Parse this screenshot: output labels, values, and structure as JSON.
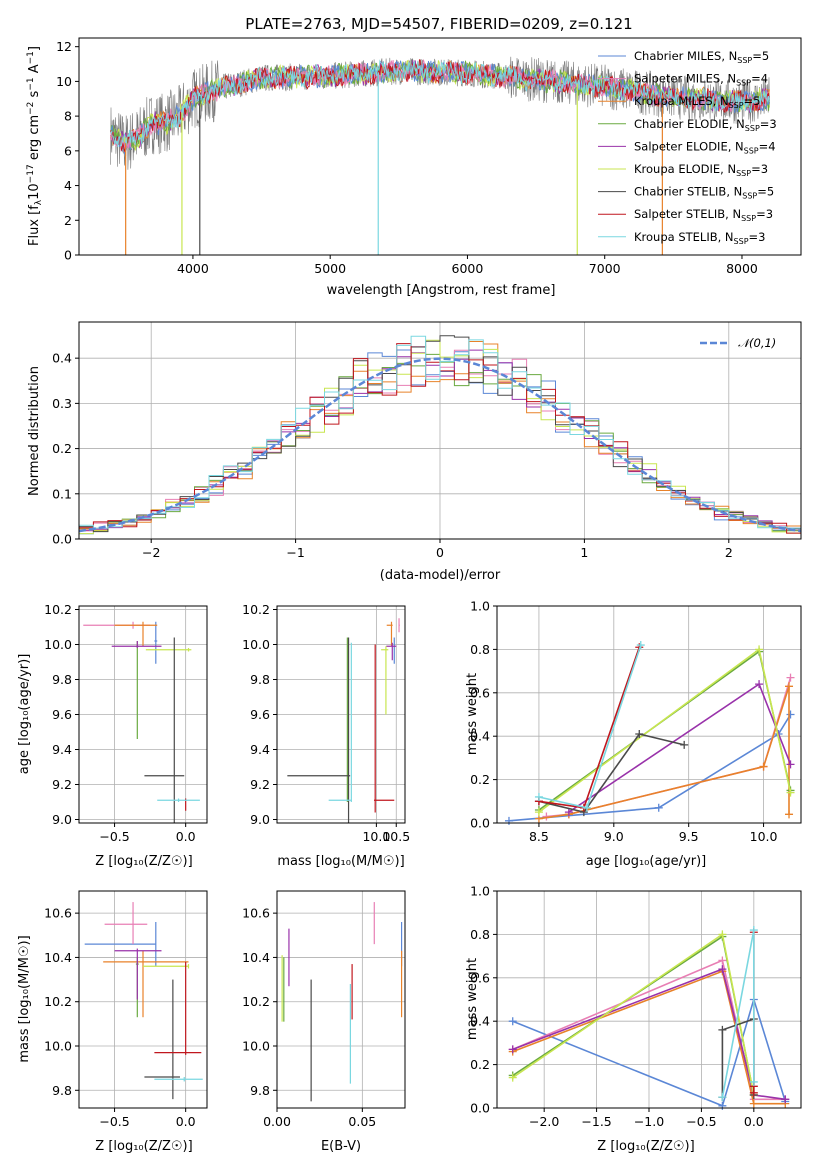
{
  "figure": {
    "title": "PLATE=2763, MJD=54507, FIBERID=0209, z=0.121"
  },
  "colors": {
    "Chabrier MILES": "#5b87d6",
    "Salpeter MILES": "#e87fb4",
    "Kroupa MILES": "#e8822a",
    "Chabrier ELODIE": "#6aaa40",
    "Salpeter ELODIE": "#9932aa",
    "Kroupa ELODIE": "#c8e650",
    "Chabrier STELIB": "#4a4a4a",
    "Salpeter STELIB": "#c0171e",
    "Kroupa STELIB": "#7ad7e0"
  },
  "chart_data": [
    {
      "type": "line",
      "panel": "spectrum",
      "title": "PLATE=2763, MJD=54507, FIBERID=0209, z=0.121",
      "xlabel": "wavelength [Angstrom, rest frame]",
      "ylabel": "Flux [f_λ 10^-17 erg cm^-2 s^-1 A^-1]",
      "xlim": [
        3170,
        8430
      ],
      "ylim": [
        0,
        12.5
      ],
      "xticks": [
        "4000",
        "5000",
        "6000",
        "7000",
        "8000"
      ],
      "yticks": [
        "0",
        "2",
        "4",
        "6",
        "8",
        "10",
        "12"
      ],
      "legend_position": "top-right",
      "legend": [
        "Chabrier MILES, N_SSP=5",
        "Salpeter MILES, N_SSP=4",
        "Kroupa MILES, N_SSP=5",
        "Chabrier ELODIE, N_SSP=3",
        "Salpeter ELODIE, N_SSP=4",
        "Kroupa ELODIE, N_SSP=3",
        "Chabrier STELIB, N_SSP=5",
        "Salpeter STELIB, N_SSP=3",
        "Kroupa STELIB, N_SSP=3"
      ],
      "legend_main": [
        "Chabrier MILES, N",
        "Salpeter MILES, N",
        "Kroupa MILES, N",
        "Chabrier ELODIE, N",
        "Salpeter ELODIE, N",
        "Kroupa ELODIE, N",
        "Chabrier STELIB, N",
        "Salpeter STELIB, N",
        "Kroupa STELIB, N"
      ],
      "legend_sub": "SSP",
      "legend_val": [
        "=5",
        "=4",
        "=5",
        "=3",
        "=4",
        "=3",
        "=5",
        "=3",
        "=3"
      ],
      "continuum": [
        [
          3400,
          7.0
        ],
        [
          3500,
          6.4
        ],
        [
          3600,
          6.8
        ],
        [
          3700,
          7.6
        ],
        [
          3800,
          7.6
        ],
        [
          3900,
          8.0
        ],
        [
          4000,
          9.0
        ],
        [
          4200,
          9.6
        ],
        [
          4500,
          10.2
        ],
        [
          5000,
          10.3
        ],
        [
          5500,
          10.6
        ],
        [
          6000,
          10.5
        ],
        [
          6500,
          10.1
        ],
        [
          7000,
          9.7
        ],
        [
          7500,
          9.1
        ],
        [
          8000,
          8.8
        ],
        [
          8200,
          9.0
        ]
      ],
      "drop_lines": [
        {
          "x": 3510,
          "series": "Kroupa MILES"
        },
        {
          "x": 3920,
          "series": "Kroupa ELODIE"
        },
        {
          "x": 4050,
          "series": "Chabrier STELIB"
        },
        {
          "x": 5350,
          "series": "Kroupa STELIB"
        },
        {
          "x": 6800,
          "series": "Kroupa ELODIE"
        },
        {
          "x": 7420,
          "series": "Kroupa MILES"
        }
      ]
    },
    {
      "type": "histogram",
      "panel": "residuals",
      "xlabel": "(data-model)/error",
      "ylabel": "Normed distribution",
      "xlim": [
        -2.5,
        2.5
      ],
      "ylim": [
        0,
        0.48
      ],
      "xticks": [
        "−2",
        "−1",
        "0",
        "1",
        "2"
      ],
      "yticks": [
        "0.0",
        "0.1",
        "0.2",
        "0.3",
        "0.4"
      ],
      "bin_width": 0.1,
      "legend": [
        "𝒩(0,1)"
      ],
      "legend_position": "top-right",
      "gaussian": {
        "mean": 0,
        "sigma": 1
      }
    },
    {
      "type": "scatter",
      "panel": "age-vs-metallicity",
      "xlabel": "Z [log₁₀(Z/Z☉)]",
      "ylabel": "age  [log₁₀(age/yr)]",
      "xlim": [
        -0.75,
        0.15
      ],
      "ylim": [
        8.98,
        10.22
      ],
      "xticks": [
        "−0.5",
        "0.0"
      ],
      "yticks": [
        "9.0",
        "9.2",
        "9.4",
        "9.6",
        "9.8",
        "10.0",
        "10.2"
      ],
      "points": [
        {
          "series": "Chabrier MILES",
          "x": -0.21,
          "y": 10.02,
          "xerr": [
            0.01,
            0.01
          ],
          "yerr": [
            0.13,
            0.11
          ]
        },
        {
          "series": "Salpeter MILES",
          "x": -0.37,
          "y": 10.11,
          "xerr": [
            0.35,
            0.12
          ],
          "yerr": [
            0.02,
            0.02
          ]
        },
        {
          "series": "Kroupa MILES",
          "x": -0.3,
          "y": 10.11,
          "xerr": [
            0.2,
            0.1
          ],
          "yerr": [
            0.12,
            0.02
          ]
        },
        {
          "series": "Chabrier ELODIE",
          "x": -0.34,
          "y": 9.99,
          "xerr": [
            0.01,
            0.01
          ],
          "yerr": [
            0.53,
            0.03
          ]
        },
        {
          "series": "Salpeter ELODIE",
          "x": -0.34,
          "y": 9.99,
          "xerr": [
            0.18,
            0.17
          ],
          "yerr": [
            0.01,
            0.03
          ]
        },
        {
          "series": "Kroupa ELODIE",
          "x": 0.02,
          "y": 9.97,
          "xerr": [
            0.3,
            0.02
          ],
          "yerr": [
            0.01,
            0.01
          ]
        },
        {
          "series": "Chabrier STELIB",
          "x": -0.08,
          "y": 9.25,
          "xerr": [
            0.21,
            0.07
          ],
          "yerr": [
            0.5,
            0.79
          ]
        },
        {
          "series": "Salpeter STELIB",
          "x": 0.0,
          "y": 9.12,
          "xerr": [
            0.0,
            0.0
          ],
          "yerr": [
            0.07,
            0.0
          ]
        },
        {
          "series": "Kroupa STELIB",
          "x": -0.05,
          "y": 9.11,
          "xerr": [
            0.15,
            0.15
          ],
          "yerr": [
            0.01,
            0.01
          ]
        }
      ]
    },
    {
      "type": "scatter",
      "panel": "age-vs-mass",
      "xlabel": "mass [log₁₀(M/M☉)]",
      "ylabel": "",
      "xlim": [
        7.5,
        10.72
      ],
      "ylim": [
        8.98,
        10.22
      ],
      "xticks": [
        "10.0",
        "10.5"
      ],
      "yticks": [
        "9.0",
        "9.2",
        "9.4",
        "9.6",
        "9.8",
        "10.0",
        "10.2"
      ],
      "points": [
        {
          "series": "Chabrier MILES",
          "x": 10.45,
          "y": 10.02,
          "xerr": [
            0.01,
            0.01
          ],
          "yerr": [
            0.13,
            0.02
          ]
        },
        {
          "series": "Salpeter MILES",
          "x": 10.57,
          "y": 10.11,
          "xerr": [
            0.01,
            0.02
          ],
          "yerr": [
            0.04,
            0.04
          ]
        },
        {
          "series": "Kroupa MILES",
          "x": 10.38,
          "y": 10.11,
          "xerr": [
            0.12,
            0.03
          ],
          "yerr": [
            0.12,
            0.02
          ]
        },
        {
          "series": "Chabrier ELODIE",
          "x": 9.27,
          "y": 9.99,
          "xerr": [
            0.01,
            0.01
          ],
          "yerr": [
            0.89,
            0.05
          ]
        },
        {
          "series": "Salpeter ELODIE",
          "x": 10.4,
          "y": 9.99,
          "xerr": [
            0.15,
            0.1
          ],
          "yerr": [
            0.08,
            0.02
          ]
        },
        {
          "series": "Kroupa ELODIE",
          "x": 10.24,
          "y": 9.97,
          "xerr": [
            0.12,
            0.06
          ],
          "yerr": [
            0.37,
            0.02
          ]
        },
        {
          "series": "Chabrier STELIB",
          "x": 9.3,
          "y": 9.25,
          "xerr": [
            1.54,
            0.04
          ],
          "yerr": [
            0.27,
            0.79
          ]
        },
        {
          "series": "Salpeter STELIB",
          "x": 9.97,
          "y": 9.11,
          "xerr": [
            0.03,
            0.48
          ],
          "yerr": [
            0.07,
            0.89
          ]
        },
        {
          "series": "Kroupa STELIB",
          "x": 9.37,
          "y": 9.11,
          "xerr": [
            0.57,
            0.01
          ],
          "yerr": [
            0.01,
            0.9
          ]
        }
      ]
    },
    {
      "type": "line",
      "panel": "mass-weight-vs-age",
      "xlabel": "age  [log₁₀(age/yr)]",
      "ylabel": "mass weight",
      "xlim": [
        8.22,
        10.25
      ],
      "ylim": [
        0,
        1
      ],
      "xticks": [
        "8.5",
        "9.0",
        "9.5",
        "10.0"
      ],
      "yticks": [
        "0.0",
        "0.2",
        "0.4",
        "0.6",
        "0.8",
        "1.0"
      ],
      "series": [
        {
          "name": "Chabrier MILES",
          "x": [
            8.3,
            9.3,
            10.1,
            10.18
          ],
          "y": [
            0.01,
            0.07,
            0.41,
            0.5
          ]
        },
        {
          "name": "Salpeter MILES",
          "x": [
            8.55,
            8.7,
            10.0,
            10.18
          ],
          "y": [
            0.03,
            0.04,
            0.26,
            0.67
          ]
        },
        {
          "name": "Kroupa MILES",
          "x": [
            8.5,
            8.7,
            10.0,
            10.17,
            10.17
          ],
          "y": [
            0.02,
            0.04,
            0.26,
            0.63,
            0.04
          ]
        },
        {
          "name": "Chabrier ELODIE",
          "x": [
            8.5,
            9.97,
            10.18
          ],
          "y": [
            0.06,
            0.79,
            0.15
          ]
        },
        {
          "name": "Salpeter ELODIE",
          "x": [
            8.7,
            9.97,
            10.18
          ],
          "y": [
            0.05,
            0.64,
            0.27
          ]
        },
        {
          "name": "Kroupa ELODIE",
          "x": [
            8.5,
            9.97,
            10.18
          ],
          "y": [
            0.05,
            0.8,
            0.14
          ]
        },
        {
          "name": "Chabrier STELIB",
          "x": [
            8.5,
            8.8,
            9.17,
            9.47
          ],
          "y": [
            0.1,
            0.05,
            0.41,
            0.36
          ]
        },
        {
          "name": "Salpeter STELIB",
          "x": [
            8.5,
            8.8,
            9.17
          ],
          "y": [
            0.1,
            0.07,
            0.81
          ]
        },
        {
          "name": "Kroupa STELIB",
          "x": [
            8.5,
            8.82,
            9.18
          ],
          "y": [
            0.12,
            0.07,
            0.82
          ]
        }
      ]
    },
    {
      "type": "scatter",
      "panel": "mass-vs-metallicity",
      "xlabel": "Z [log₁₀(Z/Z☉)]",
      "ylabel": "mass [log₁₀(M/M☉)]",
      "xlim": [
        -0.75,
        0.15
      ],
      "ylim": [
        9.72,
        10.7
      ],
      "xticks": [
        "−0.5",
        "0.0"
      ],
      "yticks": [
        "9.8",
        "10.0",
        "10.2",
        "10.4",
        "10.6"
      ],
      "points": [
        {
          "series": "Chabrier MILES",
          "x": -0.21,
          "y": 10.46,
          "xerr": [
            0.5,
            0.0
          ],
          "yerr": [
            0.1,
            0.1
          ]
        },
        {
          "series": "Salpeter MILES",
          "x": -0.37,
          "y": 10.55,
          "xerr": [
            0.2,
            0.1
          ],
          "yerr": [
            0.09,
            0.1
          ]
        },
        {
          "series": "Kroupa MILES",
          "x": -0.3,
          "y": 10.38,
          "xerr": [
            0.28,
            0.32
          ],
          "yerr": [
            0.25,
            0.05
          ]
        },
        {
          "series": "Chabrier ELODIE",
          "x": -0.34,
          "y": 10.37,
          "xerr": [
            0.01,
            0.01
          ],
          "yerr": [
            0.24,
            0.03
          ]
        },
        {
          "series": "Salpeter ELODIE",
          "x": -0.34,
          "y": 10.43,
          "xerr": [
            0.16,
            0.17
          ],
          "yerr": [
            0.22,
            0.01
          ]
        },
        {
          "series": "Kroupa ELODIE",
          "x": 0.02,
          "y": 10.36,
          "xerr": [
            0.32,
            0.0
          ],
          "yerr": [
            0.01,
            0.01
          ]
        },
        {
          "series": "Chabrier STELIB",
          "x": -0.09,
          "y": 9.86,
          "xerr": [
            0.2,
            0.05
          ],
          "yerr": [
            0.1,
            0.44
          ]
        },
        {
          "series": "Salpeter STELIB",
          "x": 0.0,
          "y": 9.97,
          "xerr": [
            0.22,
            0.11
          ],
          "yerr": [
            0.01,
            0.41
          ]
        },
        {
          "series": "Kroupa STELIB",
          "x": -0.01,
          "y": 9.85,
          "xerr": [
            0.21,
            0.13
          ],
          "yerr": [
            0.01,
            0.01
          ]
        }
      ]
    },
    {
      "type": "scatter",
      "panel": "mass-vs-extinction",
      "xlabel": "E(B-V)",
      "ylabel": "",
      "xlim": [
        0.0,
        0.075
      ],
      "ylim": [
        9.72,
        10.7
      ],
      "xticks": [
        "0.00",
        "0.05"
      ],
      "yticks": [
        "9.8",
        "10.0",
        "10.2",
        "10.4",
        "10.6"
      ],
      "points": [
        {
          "series": "Chabrier MILES",
          "x": 0.073,
          "y": 10.46,
          "yerr": [
            0.1,
            0.1
          ]
        },
        {
          "series": "Salpeter MILES",
          "x": 0.057,
          "y": 10.55,
          "yerr": [
            0.09,
            0.1
          ]
        },
        {
          "series": "Kroupa MILES",
          "x": 0.073,
          "y": 10.38,
          "yerr": [
            0.25,
            0.05
          ]
        },
        {
          "series": "Chabrier ELODIE",
          "x": 0.004,
          "y": 10.32,
          "yerr": [
            0.21,
            0.08
          ]
        },
        {
          "series": "Salpeter ELODIE",
          "x": 0.007,
          "y": 10.4,
          "yerr": [
            0.13,
            0.13
          ]
        },
        {
          "series": "Kroupa ELODIE",
          "x": 0.003,
          "y": 10.27,
          "yerr": [
            0.16,
            0.14
          ]
        },
        {
          "series": "Chabrier STELIB",
          "x": 0.02,
          "y": 9.92,
          "yerr": [
            0.17,
            0.38
          ]
        },
        {
          "series": "Salpeter STELIB",
          "x": 0.044,
          "y": 10.2,
          "yerr": [
            0.08,
            0.17
          ]
        },
        {
          "series": "Kroupa STELIB",
          "x": 0.043,
          "y": 10.05,
          "yerr": [
            0.22,
            0.23
          ]
        }
      ]
    },
    {
      "type": "line",
      "panel": "mass-weight-vs-metallicity",
      "xlabel": "Z [log₁₀(Z/Z☉)]",
      "ylabel": "mass weight",
      "xlim": [
        -2.45,
        0.45
      ],
      "ylim": [
        0,
        1
      ],
      "xticks": [
        "−2.0",
        "−1.5",
        "−1.0",
        "−0.5",
        "0.0"
      ],
      "yticks": [
        "0.0",
        "0.2",
        "0.4",
        "0.6",
        "0.8",
        "1.0"
      ],
      "series": [
        {
          "name": "Chabrier MILES",
          "x": [
            -2.3,
            -0.3,
            0.0,
            0.3
          ],
          "y": [
            0.4,
            0.01,
            0.5,
            0.03
          ]
        },
        {
          "name": "Salpeter MILES",
          "x": [
            -2.3,
            -0.3,
            0.0,
            0.3
          ],
          "y": [
            0.27,
            0.68,
            0.04,
            0.04
          ]
        },
        {
          "name": "Kroupa MILES",
          "x": [
            -2.3,
            -0.3,
            0.0,
            0.3
          ],
          "y": [
            0.26,
            0.63,
            0.02,
            0.02
          ]
        },
        {
          "name": "Chabrier ELODIE",
          "x": [
            -2.3,
            -0.3,
            0.0
          ],
          "y": [
            0.15,
            0.79,
            0.06
          ]
        },
        {
          "name": "Salpeter ELODIE",
          "x": [
            -2.3,
            -0.3,
            0.0,
            0.3
          ],
          "y": [
            0.27,
            0.64,
            0.06,
            0.04
          ]
        },
        {
          "name": "Kroupa ELODIE",
          "x": [
            -2.3,
            -0.3,
            0.0
          ],
          "y": [
            0.14,
            0.8,
            0.06
          ]
        },
        {
          "name": "Chabrier STELIB",
          "x": [
            -0.3,
            -0.3,
            0.0,
            0.0
          ],
          "y": [
            0.05,
            0.36,
            0.41,
            0.06
          ]
        },
        {
          "name": "Salpeter STELIB",
          "x": [
            0.0,
            0.0,
            0.0
          ],
          "y": [
            0.1,
            0.81,
            0.07
          ]
        },
        {
          "name": "Kroupa STELIB",
          "x": [
            -0.3,
            0.0,
            0.0
          ],
          "y": [
            0.05,
            0.82,
            0.12
          ]
        }
      ]
    }
  ]
}
